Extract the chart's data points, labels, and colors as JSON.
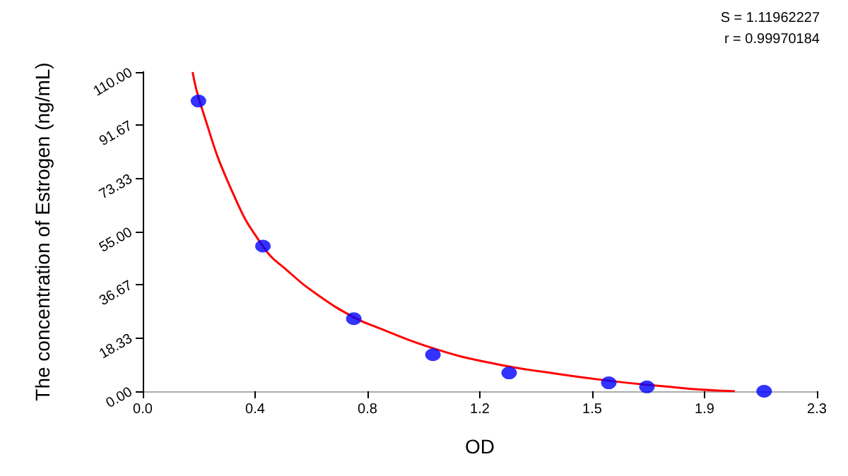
{
  "chart_data": {
    "type": "scatter",
    "xlabel": "OD",
    "ylabel": "The concentration of Estrogen (ng/mL)",
    "annotations": [
      "S = 1.11962227",
      "r = 0.99970184"
    ],
    "xlim": [
      0,
      2.3
    ],
    "ylim": [
      0,
      110
    ],
    "xticks": [
      {
        "value": 0,
        "label": "0.0"
      },
      {
        "value": 0.3833,
        "label": "0.4"
      },
      {
        "value": 0.7667,
        "label": "0.8"
      },
      {
        "value": 1.15,
        "label": "1.2"
      },
      {
        "value": 1.5333,
        "label": "1.5"
      },
      {
        "value": 1.9167,
        "label": "1.9"
      },
      {
        "value": 2.3,
        "label": "2.3"
      }
    ],
    "yticks": [
      {
        "value": 0,
        "label": "0.00"
      },
      {
        "value": 18.33,
        "label": "18.33"
      },
      {
        "value": 36.67,
        "label": "36.67"
      },
      {
        "value": 55,
        "label": "55.00"
      },
      {
        "value": 73.33,
        "label": "73.33"
      },
      {
        "value": 91.67,
        "label": "91.67"
      },
      {
        "value": 110,
        "label": "110.00"
      }
    ],
    "series": [
      {
        "type": "line",
        "color": "#ff0000",
        "marker": "none",
        "line_style": "solid",
        "x": [
          0.17,
          0.2,
          0.3,
          0.41,
          0.5,
          0.6,
          0.72,
          0.8,
          1.0,
          1.2,
          1.4,
          1.6,
          1.8,
          1.9,
          2.02
        ],
        "values": [
          110,
          98,
          70,
          50,
          41,
          33,
          25.5,
          22,
          14.5,
          9.5,
          6.2,
          3.5,
          1.5,
          0.6,
          0
        ]
      },
      {
        "color": "#0000ff",
        "marker": "circle",
        "x": [
          0.19,
          0.41,
          0.72,
          0.99,
          1.25,
          1.59,
          1.72,
          2.12
        ],
        "values": [
          100,
          50,
          25,
          12.6,
          6.3,
          2.9,
          1.5,
          0
        ]
      }
    ]
  }
}
